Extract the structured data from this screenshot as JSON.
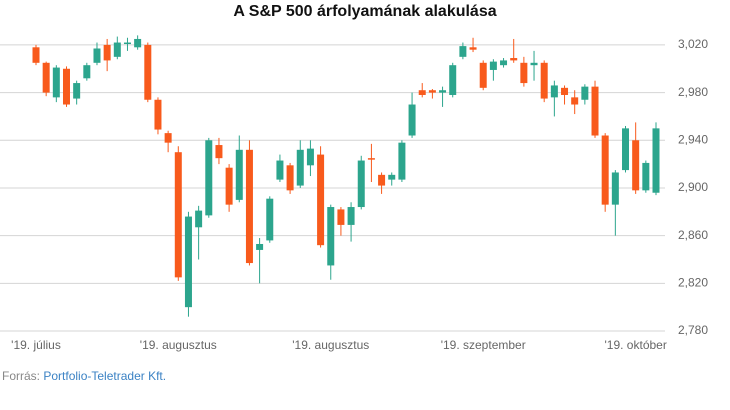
{
  "chart_data": {
    "type": "candlestick",
    "title": "A S&P 500 árfolyamának alakulása",
    "categories": [
      "'19. július",
      null,
      null,
      null,
      null,
      null,
      null,
      null,
      null,
      null,
      null,
      null,
      null,
      null,
      "'19. augusztus",
      null,
      null,
      null,
      null,
      null,
      null,
      null,
      null,
      null,
      null,
      null,
      null,
      null,
      null,
      "'19. augusztus",
      null,
      null,
      null,
      null,
      null,
      null,
      null,
      null,
      null,
      null,
      null,
      null,
      null,
      null,
      "'19. szeptember",
      null,
      null,
      null,
      null,
      null,
      null,
      null,
      null,
      null,
      null,
      null,
      null,
      null,
      null,
      "'19. október",
      null,
      null
    ],
    "open": [
      3018,
      3005,
      2976,
      3000,
      2975,
      2992,
      3005,
      3020,
      3010,
      3021,
      3018,
      3020,
      2974,
      2946,
      2930,
      2800,
      2867,
      2877,
      2936,
      2917,
      2890,
      2932,
      2848,
      2856,
      2907,
      2919,
      2902,
      2919,
      2928,
      2835,
      2882,
      2869,
      2884,
      2925,
      2911,
      2907,
      2907,
      2944,
      2982,
      2982,
      2980,
      2978,
      3010,
      3018,
      3005,
      2999,
      3003,
      3009,
      3005,
      3003,
      3005,
      2976,
      2984,
      2976,
      2974,
      2985,
      2944,
      2886,
      2915,
      2940,
      2898,
      2896
    ],
    "high": [
      3020,
      3006,
      3003,
      3002,
      2990,
      3005,
      3022,
      3025,
      3027,
      3026,
      3028,
      3022,
      2976,
      2948,
      2935,
      2880,
      2885,
      2942,
      2942,
      2920,
      2944,
      2940,
      2858,
      2893,
      2928,
      2921,
      2940,
      2940,
      2935,
      2886,
      2884,
      2888,
      2927,
      2937,
      2913,
      2913,
      2940,
      2980,
      2988,
      2983,
      2985,
      3005,
      3022,
      3026,
      3007,
      3008,
      3009,
      3025,
      3010,
      3015,
      3007,
      2990,
      2986,
      2982,
      2987,
      2990,
      2946,
      2915,
      2952,
      2955,
      2923,
      2955
    ],
    "low": [
      3003,
      2977,
      2972,
      2968,
      2970,
      2990,
      3003,
      2998,
      3008,
      3015,
      3016,
      2972,
      2945,
      2930,
      2822,
      2792,
      2840,
      2875,
      2920,
      2880,
      2888,
      2835,
      2820,
      2854,
      2905,
      2895,
      2900,
      2910,
      2850,
      2823,
      2860,
      2855,
      2882,
      2905,
      2895,
      2902,
      2905,
      2942,
      2976,
      2975,
      2968,
      2976,
      3008,
      3014,
      2982,
      2990,
      3001,
      3005,
      2985,
      2990,
      2972,
      2960,
      2970,
      2962,
      2970,
      2942,
      2880,
      2860,
      2913,
      2895,
      2896,
      2894
    ],
    "close": [
      3005,
      2980,
      3001,
      2970,
      2988,
      3003,
      3017,
      3007,
      3022,
      3022,
      3025,
      2974,
      2949,
      2938,
      2825,
      2876,
      2881,
      2940,
      2925,
      2886,
      2932,
      2837,
      2853,
      2891,
      2923,
      2898,
      2932,
      2933,
      2852,
      2884,
      2869,
      2884,
      2923,
      2924,
      2902,
      2911,
      2938,
      2970,
      2978,
      2980,
      2982,
      3003,
      3019,
      3016,
      2984,
      3006,
      3007,
      3007,
      2988,
      3005,
      2975,
      2986,
      2978,
      2970,
      2985,
      2944,
      2886,
      2913,
      2950,
      2898,
      2921,
      2950
    ],
    "up_color": "#2ca58d",
    "down_color": "#f85a1c",
    "ylim": [
      2780,
      3030
    ],
    "yticks": [
      {
        "value": 2780,
        "label": "2,780"
      },
      {
        "value": 2820,
        "label": "2,820"
      },
      {
        "value": 2860,
        "label": "2,860"
      },
      {
        "value": 2900,
        "label": "2,900"
      },
      {
        "value": 2940,
        "label": "2,940"
      },
      {
        "value": 2980,
        "label": "2,980"
      },
      {
        "value": 3020,
        "label": "3,020"
      }
    ],
    "grid": true,
    "source_label": "Forrás:",
    "source_text": "Portfolio-Teletrader Kft."
  }
}
